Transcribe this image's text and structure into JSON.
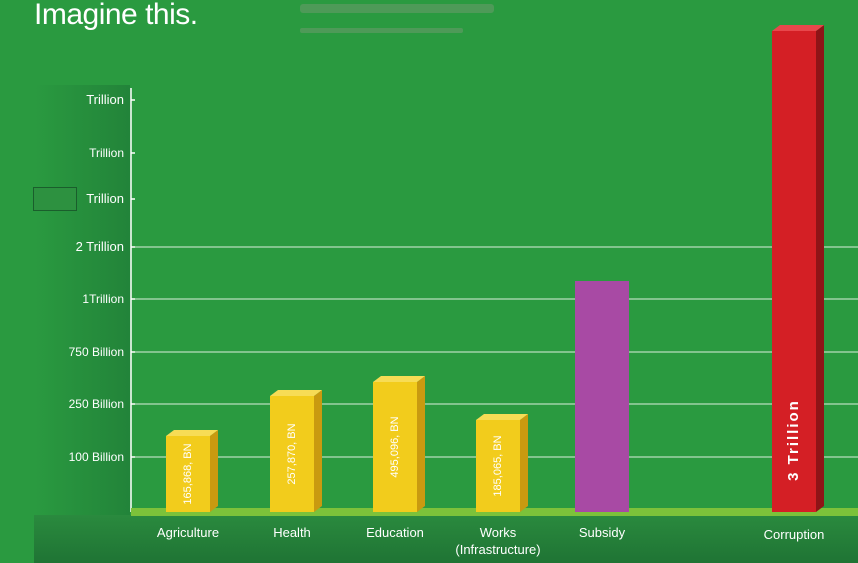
{
  "title": "Imagine this.",
  "colors": {
    "background": "#2a9a40",
    "bar_yellow": "#f2cc1c",
    "bar_purple": "#a84aa4",
    "bar_red": "#d41f25",
    "ground": "#7cc23a"
  },
  "chart_data": {
    "type": "bar",
    "title": "Imagine this.",
    "xlabel": "",
    "ylabel": "",
    "y_tick_labels": [
      "100 Billion",
      "250 Billion",
      "750 Billion",
      "1Trillion",
      "2 Trillion",
      "Trillion",
      "Trillion",
      "Trillion"
    ],
    "categories": [
      "Agriculture",
      "Health",
      "Education",
      "Works (Infrastructure)",
      "Subsidy",
      "Corruption"
    ],
    "category_lines": [
      [
        "Agriculture"
      ],
      [
        "Health"
      ],
      [
        "Education"
      ],
      [
        "Works",
        "(Infrastructure)"
      ],
      [
        "Subsidy"
      ],
      [
        "Corruption"
      ]
    ],
    "values_billion": [
      165.868,
      257.87,
      495.096,
      185.065,
      1100,
      3000
    ],
    "value_labels": [
      "165,868, BN",
      "257,870, BN",
      "495,096, BN",
      "185,065, BN",
      "",
      "3 Trillion"
    ],
    "bar_colors": [
      "#f2cc1c",
      "#f2cc1c",
      "#f2cc1c",
      "#f2cc1c",
      "#a84aa4",
      "#d41f25"
    ],
    "grid": true,
    "legend": "none"
  }
}
